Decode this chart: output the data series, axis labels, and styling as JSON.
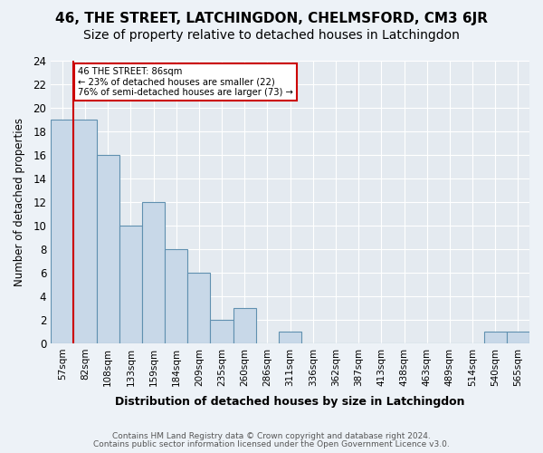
{
  "title": "46, THE STREET, LATCHINGDON, CHELMSFORD, CM3 6JR",
  "subtitle": "Size of property relative to detached houses in Latchingdon",
  "xlabel": "Distribution of detached houses by size in Latchingdon",
  "ylabel": "Number of detached properties",
  "footnote1": "Contains HM Land Registry data © Crown copyright and database right 2024.",
  "footnote2": "Contains public sector information licensed under the Open Government Licence v3.0.",
  "bins": [
    "57sqm",
    "82sqm",
    "108sqm",
    "133sqm",
    "159sqm",
    "184sqm",
    "209sqm",
    "235sqm",
    "260sqm",
    "286sqm",
    "311sqm",
    "336sqm",
    "362sqm",
    "387sqm",
    "413sqm",
    "438sqm",
    "463sqm",
    "489sqm",
    "514sqm",
    "540sqm",
    "565sqm"
  ],
  "values": [
    19,
    19,
    16,
    10,
    12,
    8,
    6,
    2,
    3,
    0,
    1,
    0,
    0,
    0,
    0,
    0,
    0,
    0,
    0,
    1,
    1
  ],
  "bar_color": "#c8d8e8",
  "bar_edge_color": "#6090b0",
  "highlight_bin_index": 1,
  "highlight_color": "#cc0000",
  "annotation_line1": "46 THE STREET: 86sqm",
  "annotation_line2": "← 23% of detached houses are smaller (22)",
  "annotation_line3": "76% of semi-detached houses are larger (73) →",
  "annotation_box_color": "#ffffff",
  "annotation_box_edge_color": "#cc0000",
  "ylim": [
    0,
    24
  ],
  "yticks": [
    0,
    2,
    4,
    6,
    8,
    10,
    12,
    14,
    16,
    18,
    20,
    22,
    24
  ],
  "background_color": "#edf2f7",
  "plot_background_color": "#e4eaf0",
  "grid_color": "#ffffff",
  "title_fontsize": 11,
  "subtitle_fontsize": 10
}
